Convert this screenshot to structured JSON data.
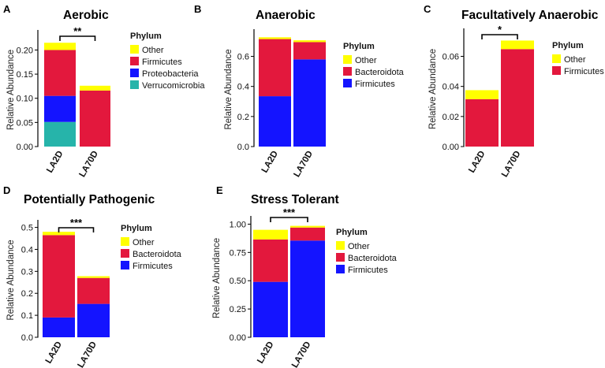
{
  "colors": {
    "Other": "#ffff00",
    "Firmicutes": "#e3183d",
    "Proteobacteria": "#1414ff",
    "Verrucomicrobia": "#26b4aa",
    "Bacteroidota": "#e3183d",
    "Firmicutes_blue": "#1414ff"
  },
  "chart_data": [
    {
      "letter": "A",
      "type": "bar",
      "stacked": true,
      "title": "Aerobic",
      "ylabel": "Relative Abundance",
      "categories": [
        "LA2D",
        "LA70D"
      ],
      "ylim": [
        0,
        0.235
      ],
      "yticks": [
        "0.00",
        "0.05",
        "0.10",
        "0.15",
        "0.20"
      ],
      "ytick_values": [
        0,
        0.05,
        0.1,
        0.15,
        0.2
      ],
      "legend_title": "Phylum",
      "series": [
        {
          "name": "Verrucomicrobia",
          "color": "#26b4aa",
          "values": [
            0.051,
            0.0
          ]
        },
        {
          "name": "Proteobacteria",
          "color": "#1414ff",
          "values": [
            0.054,
            0.0
          ]
        },
        {
          "name": "Firmicutes",
          "color": "#e3183d",
          "values": [
            0.095,
            0.116
          ]
        },
        {
          "name": "Other",
          "color": "#ffff00",
          "values": [
            0.015,
            0.01
          ]
        }
      ],
      "legend_order": [
        "Other",
        "Firmicutes",
        "Proteobacteria",
        "Verrucomicrobia"
      ],
      "significance": "**"
    },
    {
      "letter": "B",
      "type": "bar",
      "stacked": true,
      "title": "Anaerobic",
      "ylabel": "Relative Abundance",
      "categories": [
        "LA2D",
        "LA70D"
      ],
      "ylim": [
        0,
        0.76
      ],
      "yticks": [
        "0.0",
        "0.2",
        "0.4",
        "0.6"
      ],
      "ytick_values": [
        0,
        0.2,
        0.4,
        0.6
      ],
      "legend_title": "Phylum",
      "series": [
        {
          "name": "Firmicutes",
          "color": "#1414ff",
          "values": [
            0.335,
            0.58
          ]
        },
        {
          "name": "Bacteroidota",
          "color": "#e3183d",
          "values": [
            0.38,
            0.115
          ]
        },
        {
          "name": "Other",
          "color": "#ffff00",
          "values": [
            0.012,
            0.012
          ]
        }
      ],
      "legend_order": [
        "Other",
        "Bacteroidota",
        "Firmicutes"
      ],
      "significance": ""
    },
    {
      "letter": "C",
      "type": "bar",
      "stacked": true,
      "title": "Facultatively Anaerobic",
      "ylabel": "Relative Abundance",
      "categories": [
        "LA2D",
        "LA70D"
      ],
      "ylim": [
        0,
        0.0765
      ],
      "yticks": [
        "0.00",
        "0.02",
        "0.04",
        "0.06"
      ],
      "ytick_values": [
        0,
        0.02,
        0.04,
        0.06
      ],
      "legend_title": "Phylum",
      "series": [
        {
          "name": "Firmicutes",
          "color": "#e3183d",
          "values": [
            0.0315,
            0.0648
          ]
        },
        {
          "name": "Other",
          "color": "#ffff00",
          "values": [
            0.006,
            0.0057
          ]
        }
      ],
      "legend_order": [
        "Other",
        "Firmicutes"
      ],
      "significance": "*"
    },
    {
      "letter": "D",
      "type": "bar",
      "stacked": true,
      "title": "Potentially Pathogenic",
      "ylabel": "Relative Abundance",
      "categories": [
        "LA2D",
        "LA70D"
      ],
      "ylim": [
        0,
        0.52
      ],
      "yticks": [
        "0.0",
        "0.1",
        "0.2",
        "0.3",
        "0.4",
        "0.5"
      ],
      "ytick_values": [
        0,
        0.1,
        0.2,
        0.3,
        0.4,
        0.5
      ],
      "legend_title": "Phylum",
      "series": [
        {
          "name": "Firmicutes",
          "color": "#1414ff",
          "values": [
            0.09,
            0.152
          ]
        },
        {
          "name": "Bacteroidota",
          "color": "#e3183d",
          "values": [
            0.375,
            0.118
          ]
        },
        {
          "name": "Other",
          "color": "#ffff00",
          "values": [
            0.015,
            0.008
          ]
        }
      ],
      "legend_order": [
        "Other",
        "Bacteroidota",
        "Firmicutes"
      ],
      "significance": "***"
    },
    {
      "letter": "E",
      "type": "bar",
      "stacked": true,
      "title": "Stress Tolerant",
      "ylabel": "Relative Abundance",
      "categories": [
        "LA2D",
        "LA70D"
      ],
      "ylim": [
        0,
        1.045
      ],
      "yticks": [
        "0.00",
        "0.25",
        "0.50",
        "0.75",
        "1.00"
      ],
      "ytick_values": [
        0,
        0.25,
        0.5,
        0.75,
        1.0
      ],
      "legend_title": "Phylum",
      "series": [
        {
          "name": "Firmicutes",
          "color": "#1414ff",
          "values": [
            0.49,
            0.855
          ]
        },
        {
          "name": "Bacteroidota",
          "color": "#e3183d",
          "values": [
            0.375,
            0.115
          ]
        },
        {
          "name": "Other",
          "color": "#ffff00",
          "values": [
            0.085,
            0.015
          ]
        }
      ],
      "legend_order": [
        "Other",
        "Bacteroidota",
        "Firmicutes"
      ],
      "significance": "***"
    }
  ]
}
